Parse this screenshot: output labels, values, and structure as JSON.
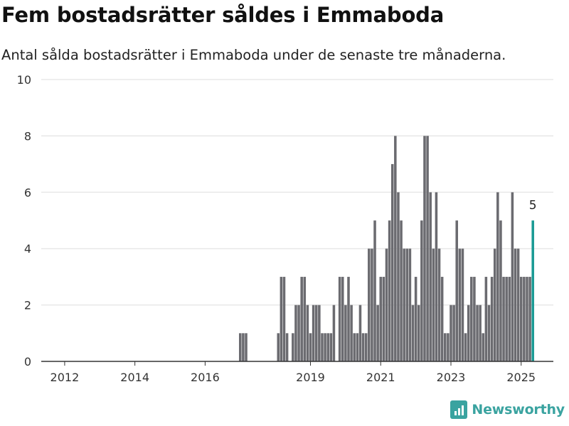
{
  "title": "Fem bostadsrätter såldes i Emmaboda",
  "subtitle": "Antal sålda bostadsrätter i Emmaboda under de senaste tre månaderna.",
  "logo_text": "Newsworthy",
  "colors": {
    "bar": "#6b6b70",
    "highlight": "#1a9a94",
    "grid": "#dddddd",
    "axis": "#333333",
    "brand": "#3aa3a0"
  },
  "chart_data": {
    "type": "bar",
    "title": "Fem bostadsrätter såldes i Emmaboda",
    "subtitle": "Antal sålda bostadsrätter i Emmaboda under de senaste tre månaderna.",
    "xlabel": "",
    "ylabel": "",
    "x_unit": "month",
    "xlim": [
      "2011-05",
      "2025-12"
    ],
    "ylim": [
      0,
      10
    ],
    "yticks": [
      0,
      2,
      4,
      6,
      8,
      10
    ],
    "xticks": [
      "2012",
      "2014",
      "2016",
      "2019",
      "2021",
      "2023",
      "2025"
    ],
    "grid": true,
    "highlight": {
      "x": "2025-05",
      "value": 5,
      "label": "5"
    },
    "series": [
      {
        "x": [
          "2017-01",
          "2017-02",
          "2017-03",
          "2018-02",
          "2018-03",
          "2018-04",
          "2018-05",
          "2018-07",
          "2018-08",
          "2018-09",
          "2018-10",
          "2018-11",
          "2018-12",
          "2019-01",
          "2019-02",
          "2019-03",
          "2019-04",
          "2019-05",
          "2019-06",
          "2019-07",
          "2019-08",
          "2019-09",
          "2019-11",
          "2019-12",
          "2020-01",
          "2020-02",
          "2020-03",
          "2020-04",
          "2020-05",
          "2020-06",
          "2020-07",
          "2020-08",
          "2020-09",
          "2020-10",
          "2020-11",
          "2020-12",
          "2021-01",
          "2021-02",
          "2021-03",
          "2021-04",
          "2021-05",
          "2021-06",
          "2021-07",
          "2021-08",
          "2021-09",
          "2021-10",
          "2021-11",
          "2021-12",
          "2022-01",
          "2022-02",
          "2022-03",
          "2022-04",
          "2022-05",
          "2022-06",
          "2022-07",
          "2022-08",
          "2022-09",
          "2022-10",
          "2022-11",
          "2022-12",
          "2023-01",
          "2023-02",
          "2023-03",
          "2023-04",
          "2023-05",
          "2023-06",
          "2023-07",
          "2023-08",
          "2023-09",
          "2023-10",
          "2023-11",
          "2023-12",
          "2024-01",
          "2024-02",
          "2024-03",
          "2024-04",
          "2024-05",
          "2024-06",
          "2024-07",
          "2024-08",
          "2024-09",
          "2024-10",
          "2024-11",
          "2024-12",
          "2025-01",
          "2025-02",
          "2025-03",
          "2025-04",
          "2025-05"
        ],
        "values": [
          1,
          1,
          1,
          1,
          3,
          3,
          1,
          1,
          2,
          2,
          3,
          3,
          2,
          1,
          2,
          2,
          2,
          1,
          1,
          1,
          1,
          2,
          3,
          3,
          2,
          3,
          2,
          1,
          1,
          2,
          1,
          1,
          4,
          4,
          5,
          2,
          3,
          3,
          4,
          5,
          7,
          8,
          6,
          5,
          4,
          4,
          4,
          2,
          3,
          2,
          5,
          8,
          8,
          6,
          4,
          6,
          4,
          3,
          1,
          1,
          2,
          2,
          5,
          4,
          4,
          1,
          2,
          3,
          3,
          2,
          2,
          1,
          3,
          2,
          3,
          4,
          6,
          5,
          3,
          3,
          3,
          6,
          4,
          4,
          3,
          3,
          3,
          3,
          5
        ]
      }
    ]
  }
}
